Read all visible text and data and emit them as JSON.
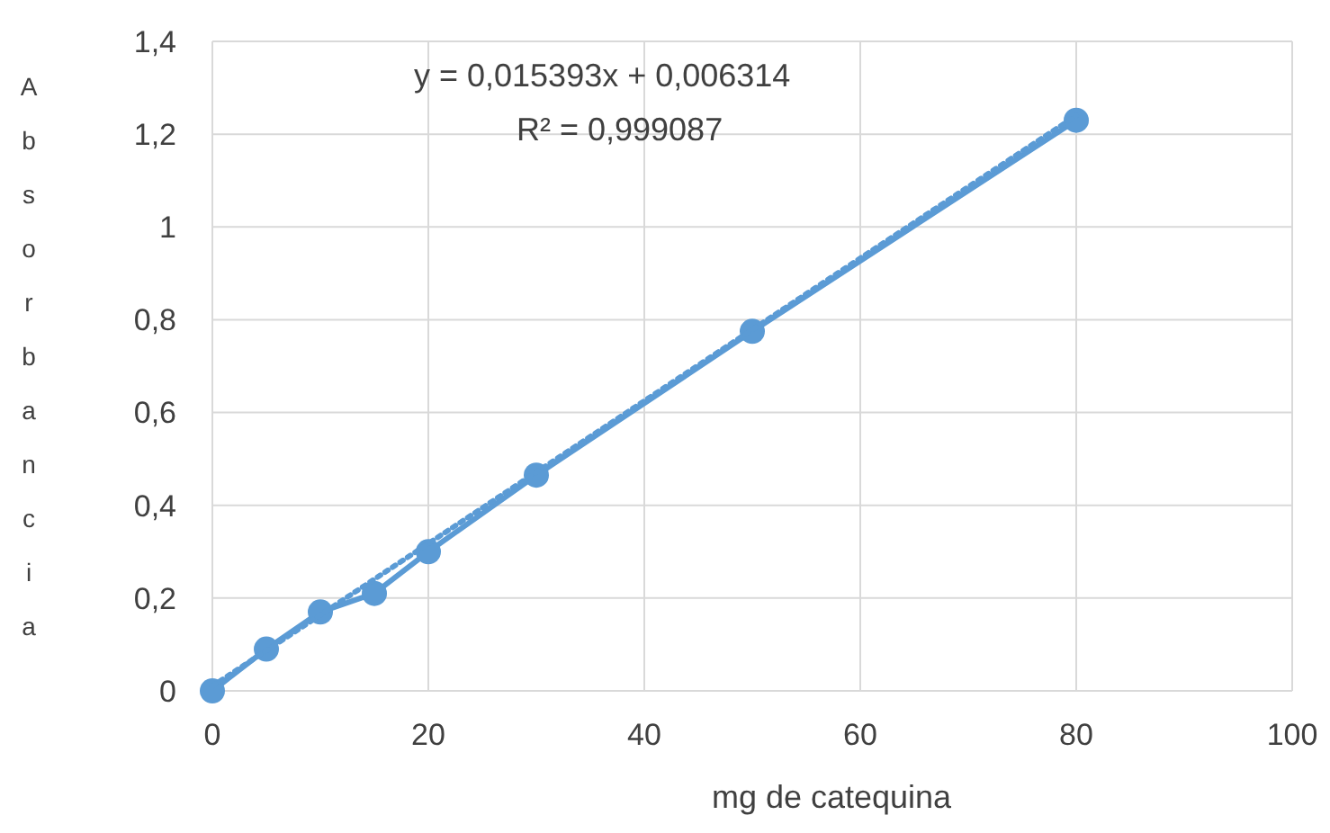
{
  "chart_data": {
    "type": "line",
    "xlabel": "mg de catequina",
    "ylabel": "Absorbancia",
    "annotations": [
      "y = 0,015393x + 0,006314",
      "R² = 0,999087"
    ],
    "x": [
      0,
      5,
      10,
      15,
      20,
      30,
      50,
      80
    ],
    "series": [
      {
        "color": "#5b9bd5",
        "values": [
          0,
          0.09,
          0.17,
          0.21,
          0.3,
          0.465,
          0.775,
          1.23
        ],
        "marker": "circle",
        "line_style": "solid"
      },
      {
        "type": "line",
        "color": "#5b9bd5",
        "x": [
          0,
          80
        ],
        "values": [
          0.01,
          1.24
        ],
        "marker": "none",
        "line_style": "dotted"
      }
    ],
    "xlim": [
      0,
      100
    ],
    "xticks": [
      0,
      20,
      40,
      60,
      80,
      100
    ],
    "ylim": [
      0,
      1.4
    ],
    "yticks": [
      0,
      {
        "value": 0.2,
        "label": "0,2"
      },
      {
        "value": 0.4,
        "label": "0,4"
      },
      {
        "value": 0.6,
        "label": "0,6"
      },
      {
        "value": 0.8,
        "label": "0,8"
      },
      1,
      {
        "value": 1.2,
        "label": "1,2"
      },
      {
        "value": 1.4,
        "label": "1,4"
      }
    ],
    "grid": true
  }
}
